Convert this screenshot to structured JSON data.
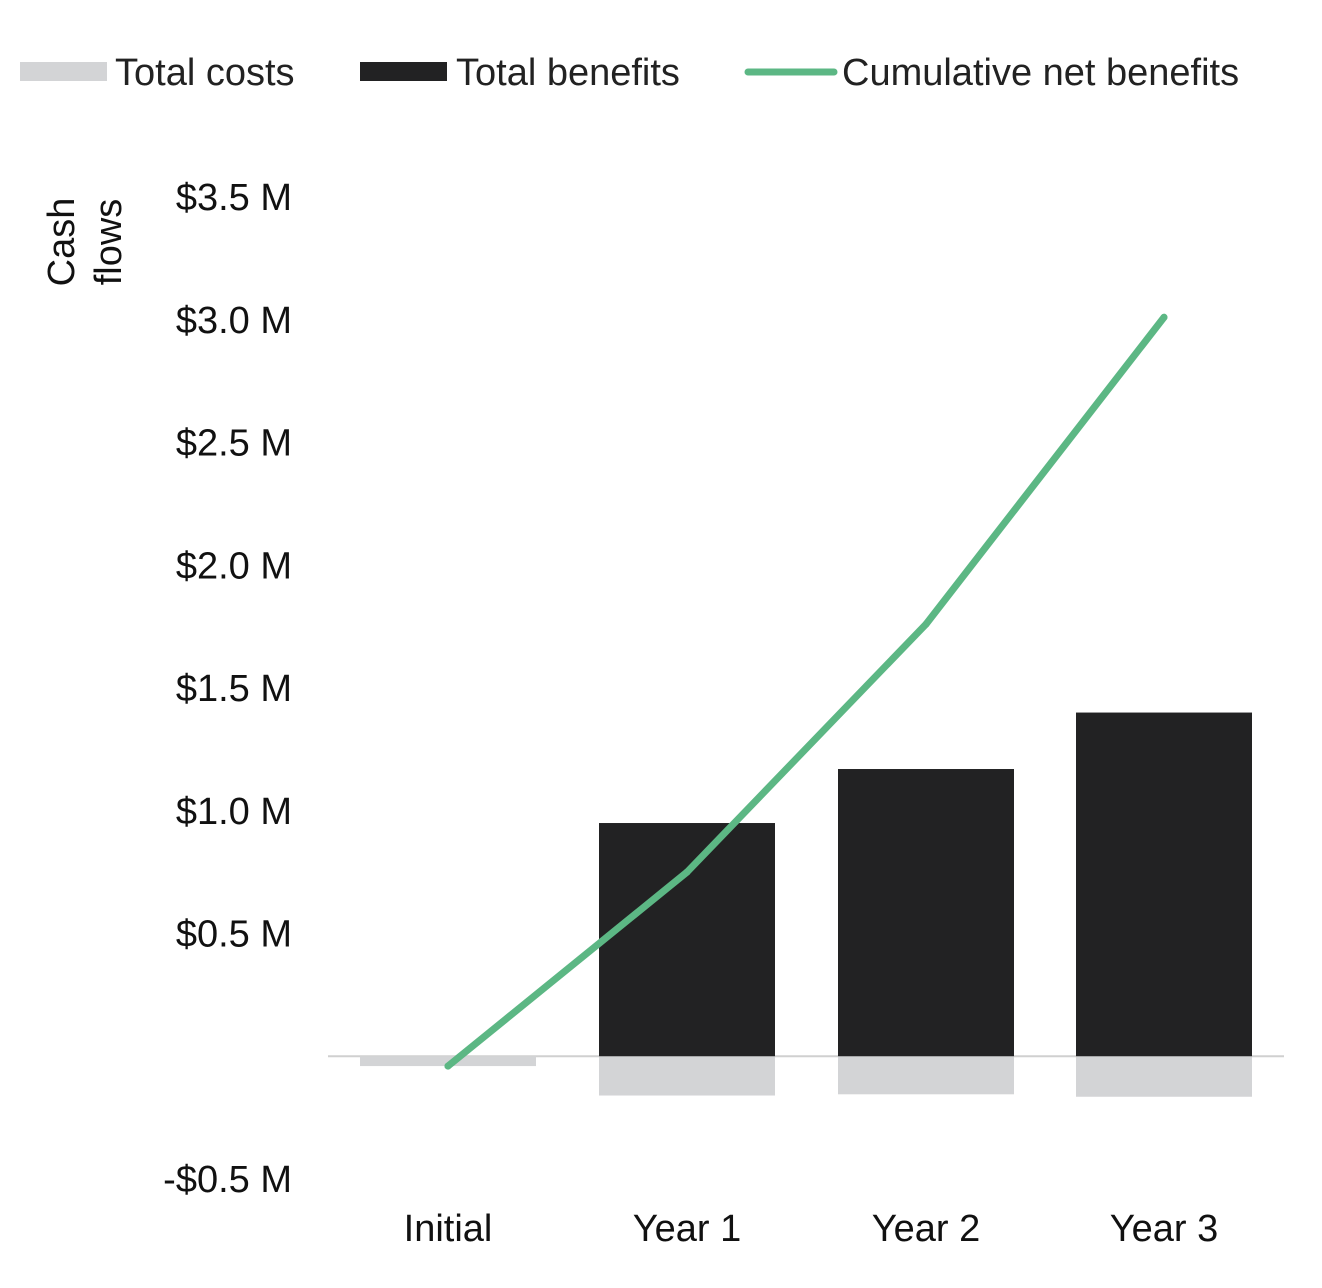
{
  "chart_data": {
    "type": "bar",
    "title": "",
    "ylabel_lines": [
      "Cash",
      "flows"
    ],
    "xlabel": "",
    "categories": [
      "Initial",
      "Year 1",
      "Year 2",
      "Year 3"
    ],
    "series": [
      {
        "name": "Total costs",
        "type": "bar",
        "color": "#d3d4d6",
        "values": [
          -0.04,
          -0.16,
          -0.155,
          -0.165
        ]
      },
      {
        "name": "Total benefits",
        "type": "bar",
        "color": "#222223",
        "values": [
          0,
          0.95,
          1.17,
          1.4
        ]
      },
      {
        "name": "Cumulative net benefits",
        "type": "line",
        "color": "#5cb784",
        "values": [
          -0.04,
          0.75,
          1.76,
          3.01
        ]
      }
    ],
    "ylim": [
      -0.5,
      3.5
    ],
    "yticks": [
      {
        "value": 3.5,
        "label": "$3.5 M"
      },
      {
        "value": 3.0,
        "label": "$3.0 M"
      },
      {
        "value": 2.5,
        "label": "$2.5 M"
      },
      {
        "value": 2.0,
        "label": "$2.0 M"
      },
      {
        "value": 1.5,
        "label": "$1.5 M"
      },
      {
        "value": 1.0,
        "label": "$1.0 M"
      },
      {
        "value": 0.5,
        "label": "$0.5 M"
      },
      {
        "value": -0.5,
        "label": "-$0.5 M"
      }
    ],
    "legend_position": "top",
    "grid": false
  }
}
